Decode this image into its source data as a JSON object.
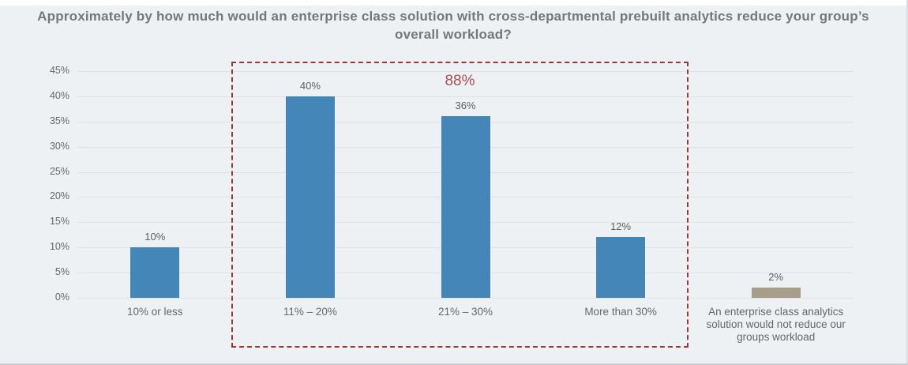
{
  "chart_data": {
    "type": "bar",
    "title": "Approximately by how much would an enterprise class solution with cross-departmental prebuilt analytics reduce your group’s overall workload?",
    "categories": [
      "10% or less",
      "11% – 20%",
      "21% – 30%",
      "More than 30%",
      "An enterprise class analytics solution would not reduce our groups workload"
    ],
    "values": [
      10,
      40,
      36,
      12,
      2
    ],
    "value_labels": [
      "10%",
      "40%",
      "36%",
      "12%",
      "2%"
    ],
    "bar_colors": [
      "#4486b8",
      "#4486b8",
      "#4486b8",
      "#4486b8",
      "#a79d8b"
    ],
    "xlabel": "",
    "ylabel": "",
    "ylim": [
      0,
      45
    ],
    "ytick_step": 5,
    "ytick_labels": [
      "0%",
      "5%",
      "10%",
      "15%",
      "20%",
      "25%",
      "30%",
      "35%",
      "40%",
      "45%"
    ],
    "grid": true,
    "legend": false,
    "annotation": {
      "text": "88%",
      "color": "#a84e52",
      "highlight_categories": [
        "11% – 20%",
        "21% – 30%",
        "More than 30%"
      ]
    },
    "highlight_box_color": "#9e3639",
    "background_color": "#eef1f4",
    "title_color": "#75787b"
  }
}
